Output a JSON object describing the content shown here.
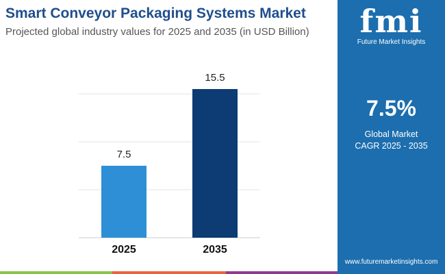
{
  "header": {
    "title": "Smart Conveyor Packaging Systems Market",
    "subtitle": "Projected global industry values for 2025 and 2035 (in USD Billion)"
  },
  "sidebar": {
    "logo_text": "fmi",
    "logo_caption": "Future Market Insights",
    "cagr_value": "7.5%",
    "cagr_label_1": "Global Market",
    "cagr_label_2": "CAGR 2025 - 2035",
    "website": "www.futuremarketinsights.com",
    "bg_color": "#1c6eae"
  },
  "colors": {
    "stripe": [
      "#8bc34a",
      "#e8643c",
      "#8e3b8e"
    ]
  },
  "chart_data": {
    "type": "bar",
    "categories": [
      "2025",
      "2035"
    ],
    "values": [
      7.5,
      15.5
    ],
    "value_labels": [
      "7.5",
      "15.5"
    ],
    "colors": [
      "#2e8fd6",
      "#0d3b73"
    ],
    "ylim": [
      0,
      20
    ],
    "grid": true
  }
}
